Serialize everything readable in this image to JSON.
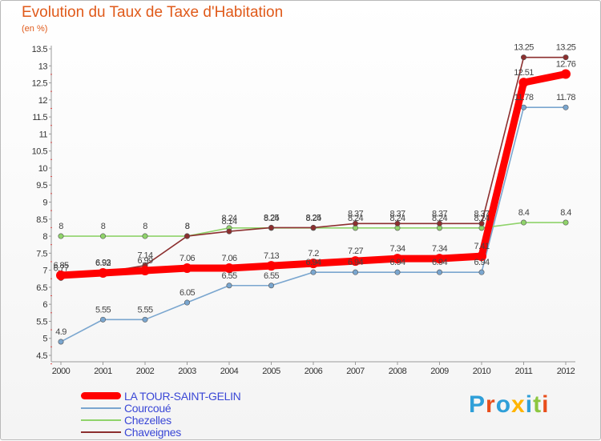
{
  "header": {
    "title": "Evolution du Taux de Taxe d'Habitation",
    "unit": "(en %)"
  },
  "logo": {
    "text": "Proxiti",
    "colors": [
      "#2f9fd8",
      "#e84e1b",
      "#2f9fd8",
      "#ffb400",
      "#2f9fd8",
      "#8cc63f",
      "#e84e1b"
    ]
  },
  "chart_data": {
    "type": "line",
    "title": "Evolution du Taux de Taxe d'Habitation",
    "ylabel": "(en %)",
    "xlabel": "",
    "ylim": [
      4.5,
      13.5
    ],
    "yticks": [
      4.5,
      5,
      5.5,
      6,
      6.5,
      7,
      7.5,
      8,
      8.5,
      9,
      9.5,
      10,
      10.5,
      11,
      11.5,
      12,
      12.5,
      13,
      13.5
    ],
    "ytick_labels": [
      "4.5",
      "5",
      "5.5",
      "6",
      "6.5",
      "7",
      "7.5",
      "8",
      "8.5",
      "9",
      "9.5",
      "10",
      "10.5",
      "11",
      "11.5",
      "12",
      "12.5",
      "13",
      "13.5"
    ],
    "categories": [
      "2000",
      "2001",
      "2002",
      "2003",
      "2004",
      "2005",
      "2006",
      "2007",
      "2008",
      "2009",
      "2010",
      "2011",
      "2012"
    ],
    "grid": false,
    "legend_position": "bottom-left",
    "series": [
      {
        "name": "LA TOUR-SAINT-GELIN",
        "color": "#ff0000",
        "values": [
          6.85,
          6.92,
          6.99,
          7.06,
          7.06,
          7.13,
          7.2,
          7.27,
          7.34,
          7.34,
          7.41,
          12.51,
          12.76
        ],
        "labels": [
          "6.85",
          "6.92",
          "6.99",
          "7.06",
          "7.06",
          "7.13",
          "7.2",
          "7.27",
          "7.34",
          "7.34",
          "7.41",
          "12.51",
          "12.76"
        ]
      },
      {
        "name": "Courcoué",
        "color": "#7aa6cf",
        "values": [
          4.9,
          5.55,
          5.55,
          6.05,
          6.55,
          6.55,
          6.94,
          6.94,
          6.94,
          6.94,
          6.94,
          11.78,
          11.78
        ],
        "labels": [
          "4.9",
          "5.55",
          "5.55",
          "6.05",
          "6.55",
          "6.55",
          "6.94",
          "6.94",
          "6.94",
          "6.94",
          "6.94",
          "11.78",
          "11.78"
        ]
      },
      {
        "name": "Chezelles",
        "color": "#8fd36a",
        "values": [
          8,
          8,
          8,
          8,
          8.24,
          8.24,
          8.24,
          8.24,
          8.24,
          8.24,
          8.24,
          8.4,
          8.4
        ],
        "labels": [
          "8",
          "8",
          "8",
          "8",
          "8.24",
          "8.24",
          "8.24",
          "8.24",
          "8.24",
          "8.24",
          "8.24",
          "8.4",
          "8.4"
        ]
      },
      {
        "name": "Chaveignes",
        "color": "#8c2f2f",
        "values": [
          6.77,
          6.93,
          7.14,
          8,
          8.14,
          8.25,
          8.25,
          8.37,
          8.37,
          8.37,
          8.37,
          13.25,
          13.25
        ],
        "labels": [
          "6.77",
          "6.93",
          "7.14",
          "8",
          "8.14",
          "8.25",
          "8.25",
          "8.37",
          "8.37",
          "8.37",
          "8.37",
          "13.25",
          "13.25"
        ]
      }
    ]
  }
}
